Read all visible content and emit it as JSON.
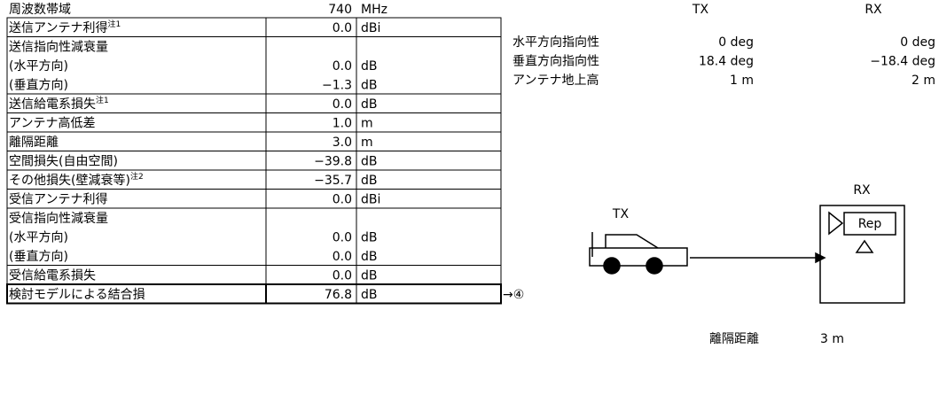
{
  "table": {
    "rows": [
      {
        "label": "周波数帯域",
        "value": "740",
        "unit": "MHz"
      },
      {
        "label": "送信アンテナ利得",
        "note": "注1",
        "value": "0.0",
        "unit": "dBi"
      },
      {
        "label": "送信指向性減衰量",
        "sub": [
          {
            "label": "(水平方向)",
            "value": "0.0",
            "unit": "dB"
          },
          {
            "label": "(垂直方向)",
            "value": "−1.3",
            "unit": "dB"
          }
        ]
      },
      {
        "label": "送信給電系損失",
        "note": "注1",
        "value": "0.0",
        "unit": "dB"
      },
      {
        "label": "アンテナ高低差",
        "value": "1.0",
        "unit": "m"
      },
      {
        "label": "離隔距離",
        "value": "3.0",
        "unit": "m"
      },
      {
        "label": "空間損失(自由空間)",
        "value": "−39.8",
        "unit": "dB"
      },
      {
        "label": "その他損失(壁減衰等)",
        "note": "注2",
        "value": "−35.7",
        "unit": "dB"
      },
      {
        "label": "受信アンテナ利得",
        "value": "0.0",
        "unit": "dBi"
      },
      {
        "label": "受信指向性減衰量",
        "sub": [
          {
            "label": "(水平方向)",
            "value": "0.0",
            "unit": "dB"
          },
          {
            "label": "(垂直方向)",
            "value": "0.0",
            "unit": "dB"
          }
        ]
      },
      {
        "label": "受信給電系損失",
        "value": "0.0",
        "unit": "dB"
      },
      {
        "label": "検討モデルによる結合損",
        "value": "76.8",
        "unit": "dB"
      }
    ],
    "result_note": "→④"
  },
  "pattern": {
    "headers": [
      "TX",
      "RX"
    ],
    "rows": [
      {
        "label": "水平方向指向性",
        "tx": "0 deg",
        "rx": "0 deg"
      },
      {
        "label": "垂直方向指向性",
        "tx": "18.4 deg",
        "rx": "−18.4 deg"
      },
      {
        "label": "アンテナ地上高",
        "tx": "1 m",
        "rx": "2 m"
      }
    ]
  },
  "diagram": {
    "tx": "TX",
    "rx": "RX",
    "rep": "Rep",
    "distance_label": "離隔距離",
    "distance_value": "3 m"
  }
}
